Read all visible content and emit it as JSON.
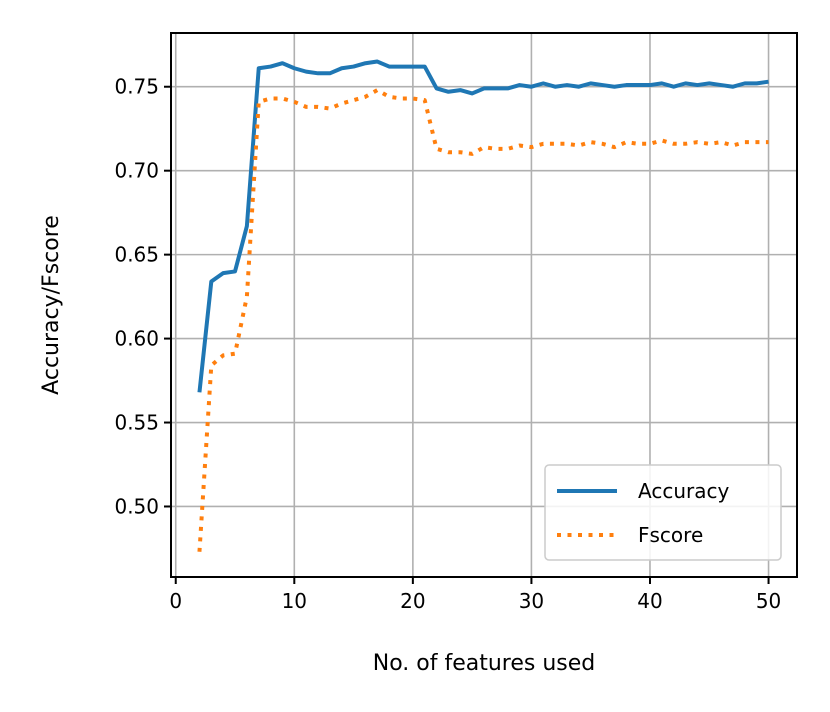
{
  "chart_data": {
    "type": "line",
    "xlabel": "No. of features used",
    "ylabel": "Accuracy/Fscore",
    "xlim": [
      -0.4,
      52.4
    ],
    "ylim": [
      0.458,
      0.782
    ],
    "xticks": [
      0,
      10,
      20,
      30,
      40,
      50
    ],
    "xtick_labels": [
      "0",
      "10",
      "20",
      "30",
      "40",
      "50"
    ],
    "yticks": [
      0.5,
      0.55,
      0.6,
      0.65,
      0.7,
      0.75
    ],
    "ytick_labels": [
      "0.50",
      "0.55",
      "0.60",
      "0.65",
      "0.70",
      "0.75"
    ],
    "grid": true,
    "legend_position": "lower-right",
    "x": [
      2,
      3,
      4,
      5,
      6,
      7,
      8,
      9,
      10,
      11,
      12,
      13,
      14,
      15,
      16,
      17,
      18,
      19,
      20,
      21,
      22,
      23,
      24,
      25,
      26,
      27,
      28,
      29,
      30,
      31,
      32,
      33,
      34,
      35,
      36,
      37,
      38,
      39,
      40,
      41,
      42,
      43,
      44,
      45,
      46,
      47,
      48,
      49,
      50
    ],
    "series": [
      {
        "name": "Accuracy",
        "color": "#1f77b4",
        "style": "solid",
        "values": [
          0.568,
          0.634,
          0.639,
          0.64,
          0.667,
          0.761,
          0.762,
          0.764,
          0.761,
          0.759,
          0.758,
          0.758,
          0.761,
          0.762,
          0.764,
          0.765,
          0.762,
          0.762,
          0.762,
          0.762,
          0.749,
          0.747,
          0.748,
          0.746,
          0.749,
          0.749,
          0.749,
          0.751,
          0.75,
          0.752,
          0.75,
          0.751,
          0.75,
          0.752,
          0.751,
          0.75,
          0.751,
          0.751,
          0.751,
          0.752,
          0.75,
          0.752,
          0.751,
          0.752,
          0.751,
          0.75,
          0.752,
          0.752,
          0.753
        ]
      },
      {
        "name": "Fscore",
        "color": "#ff7f0e",
        "style": "dotted",
        "values": [
          0.473,
          0.584,
          0.59,
          0.591,
          0.625,
          0.741,
          0.743,
          0.743,
          0.741,
          0.738,
          0.738,
          0.737,
          0.74,
          0.742,
          0.744,
          0.748,
          0.744,
          0.743,
          0.743,
          0.742,
          0.713,
          0.711,
          0.711,
          0.71,
          0.714,
          0.713,
          0.713,
          0.715,
          0.714,
          0.716,
          0.716,
          0.716,
          0.715,
          0.717,
          0.716,
          0.714,
          0.717,
          0.716,
          0.716,
          0.718,
          0.716,
          0.716,
          0.717,
          0.716,
          0.717,
          0.715,
          0.717,
          0.717,
          0.717
        ]
      }
    ]
  }
}
